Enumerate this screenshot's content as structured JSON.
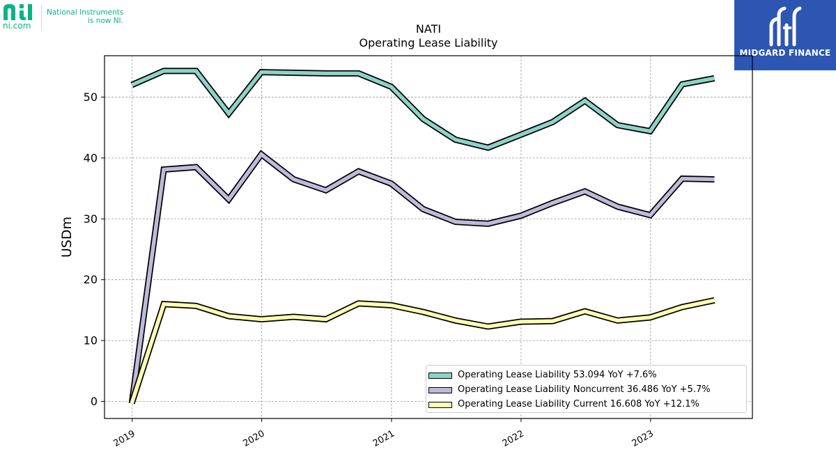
{
  "branding": {
    "ni_domain": "ni.com",
    "ni_tagline_1": "National Instruments",
    "ni_tagline_2": "is now NI.",
    "publisher": "MIDGARD FINANCE",
    "ni_color": "#03b584",
    "publisher_color": "#2c56b2"
  },
  "chart_data": {
    "type": "line",
    "title": "NATI",
    "subtitle": "Operating Lease Liability",
    "xlabel": "",
    "ylabel": "USDm",
    "xlim": [
      "2018-10-15",
      "2023-10-15"
    ],
    "ylim": [
      -2.8,
      56.8
    ],
    "x_ticks": [
      "2019",
      "2020",
      "2021",
      "2022",
      "2023"
    ],
    "y_ticks": [
      0,
      10,
      20,
      30,
      40,
      50
    ],
    "grid": true,
    "legend_position": "lower-right",
    "x": [
      "2018-12-31",
      "2019-03-31",
      "2019-06-30",
      "2019-09-30",
      "2019-12-31",
      "2020-03-31",
      "2020-06-30",
      "2020-09-30",
      "2020-12-31",
      "2021-03-31",
      "2021-06-30",
      "2021-09-30",
      "2021-12-31",
      "2022-03-31",
      "2022-06-30",
      "2022-09-30",
      "2022-12-31",
      "2023-03-31",
      "2023-06-30"
    ],
    "series": [
      {
        "name": "Operating Lease Liability",
        "legend": "Operating Lease Liability  53.094 YoY +7.6%",
        "color": "#8dd3c7",
        "values": [
          52.0,
          54.3,
          54.3,
          47.3,
          54.1,
          54.0,
          53.9,
          53.9,
          51.7,
          46.4,
          43.0,
          41.7,
          43.8,
          45.9,
          49.4,
          45.4,
          44.4,
          52.1,
          53.094
        ]
      },
      {
        "name": "Operating Lease Liability Noncurrent",
        "legend": "Operating Lease Liability Noncurrent  36.486 YoY +5.7%",
        "color": "#bebada",
        "values": [
          -0.3,
          38.1,
          38.5,
          33.2,
          40.6,
          36.5,
          34.7,
          37.8,
          35.8,
          31.6,
          29.5,
          29.2,
          30.5,
          32.6,
          34.5,
          32.0,
          30.6,
          36.6,
          36.486
        ]
      },
      {
        "name": "Operating Lease Liability Current",
        "legend": "Operating Lease Liability Current  16.608 YoY +12.1%",
        "color": "#ffffb3",
        "values": [
          -0.3,
          16.0,
          15.7,
          14.0,
          13.5,
          13.9,
          13.5,
          16.1,
          15.8,
          14.7,
          13.3,
          12.3,
          13.1,
          13.2,
          14.8,
          13.3,
          13.8,
          15.5,
          16.608
        ]
      }
    ]
  }
}
